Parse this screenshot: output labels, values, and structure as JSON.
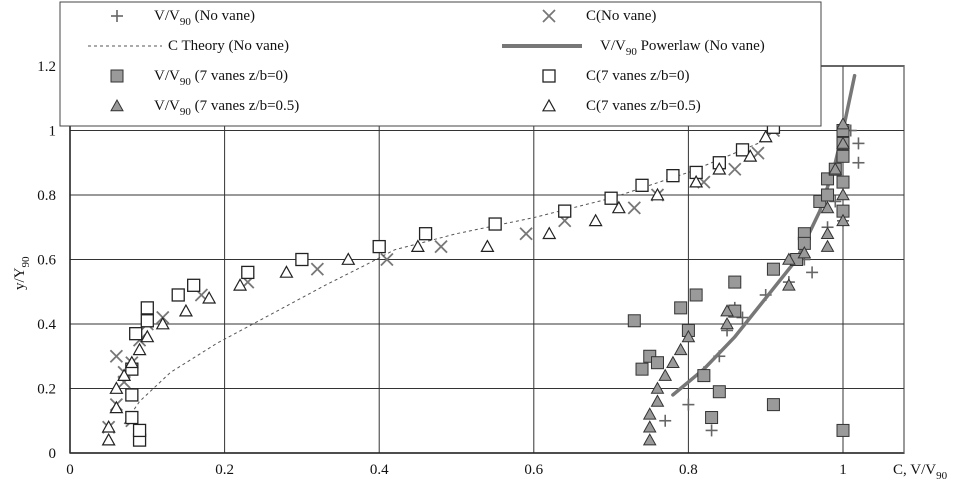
{
  "chart_data": {
    "type": "scatter",
    "x_axis": {
      "label": "C, V/V",
      "label_sub": "90",
      "range": [
        0,
        1
      ],
      "ticks": [
        0,
        0.2,
        0.4,
        0.6,
        0.8,
        1
      ],
      "tick_labels": [
        "0",
        "0.2",
        "0.4",
        "0.6",
        "0.8",
        "1"
      ]
    },
    "y_axis": {
      "label": "y/Y",
      "label_sub": "90",
      "range": [
        0,
        1.2
      ],
      "ticks": [
        0,
        0.2,
        0.4,
        0.6,
        0.8,
        1,
        1.2
      ],
      "tick_labels": [
        "0",
        "0.2",
        "0.4",
        "0.6",
        "0.8",
        "1",
        "1.2"
      ]
    },
    "grid": true,
    "legend_position": "top",
    "series": [
      {
        "name": "V/V",
        "sub": "90",
        "suffix": " (No vane)",
        "marker": "plus",
        "color": "#666666",
        "x": [
          0.83,
          0.8,
          0.77,
          0.82,
          0.85,
          0.87,
          0.84,
          0.86,
          0.9,
          0.93,
          0.96,
          0.98,
          1.0,
          0.99,
          1.02,
          1.02,
          1.01,
          0.95
        ],
        "y": [
          0.07,
          0.15,
          0.1,
          0.25,
          0.38,
          0.42,
          0.3,
          0.45,
          0.49,
          0.53,
          0.56,
          0.7,
          0.72,
          0.78,
          0.9,
          0.96,
          1.0,
          0.6
        ]
      },
      {
        "name": "C(No vane)",
        "marker": "x",
        "color": "#777777",
        "x": [
          0.05,
          0.06,
          0.07,
          0.08,
          0.09,
          0.1,
          0.12,
          0.17,
          0.23,
          0.32,
          0.41,
          0.48,
          0.59,
          0.64,
          0.73,
          0.76,
          0.82,
          0.86,
          0.89,
          0.91,
          0.06,
          0.07,
          0.08
        ],
        "y": [
          0.08,
          0.15,
          0.22,
          0.28,
          0.35,
          0.4,
          0.42,
          0.49,
          0.53,
          0.57,
          0.6,
          0.64,
          0.68,
          0.72,
          0.76,
          0.8,
          0.84,
          0.88,
          0.93,
          1.0,
          0.3,
          0.25,
          0.1
        ]
      },
      {
        "name": "C Theory (No vane)",
        "marker": "dash-line",
        "color": "#555555",
        "x": [
          0.07,
          0.09,
          0.13,
          0.19,
          0.26,
          0.33,
          0.38,
          0.42,
          0.5,
          0.6,
          0.7,
          0.8,
          0.9
        ],
        "y": [
          0.09,
          0.16,
          0.25,
          0.34,
          0.43,
          0.52,
          0.58,
          0.63,
          0.68,
          0.73,
          0.79,
          0.87,
          0.97
        ]
      },
      {
        "name": "V/V",
        "sub": "90",
        "suffix": " Powerlaw (No vane)",
        "marker": "thick-line",
        "color": "#777777",
        "x": [
          0.78,
          0.82,
          0.86,
          0.9,
          0.94,
          0.97,
          0.99,
          1.0,
          1.015
        ],
        "y": [
          0.18,
          0.26,
          0.36,
          0.48,
          0.6,
          0.75,
          0.9,
          1.0,
          1.17
        ]
      },
      {
        "name": "V/V",
        "sub": "90",
        "suffix": " (7 vanes z/b=0)",
        "marker": "filled-square",
        "color": "#9a9a9a",
        "x": [
          0.73,
          0.74,
          0.75,
          0.76,
          0.79,
          0.8,
          0.81,
          0.82,
          0.83,
          0.84,
          0.86,
          0.86,
          0.91,
          0.91,
          0.94,
          0.95,
          0.95,
          0.97,
          0.98,
          0.98,
          0.99,
          1.0,
          1.0,
          1.0,
          1.0,
          1.0,
          1.0
        ],
        "y": [
          0.41,
          0.26,
          0.3,
          0.28,
          0.45,
          0.38,
          0.49,
          0.24,
          0.11,
          0.19,
          0.53,
          0.44,
          0.57,
          0.15,
          0.6,
          0.68,
          0.65,
          0.78,
          0.8,
          0.85,
          0.88,
          0.92,
          0.96,
          1.0,
          0.75,
          0.84,
          0.07
        ]
      },
      {
        "name": "C(7 vanes z/b=0)",
        "marker": "open-square",
        "color": "#222222",
        "x": [
          0.09,
          0.09,
          0.08,
          0.08,
          0.08,
          0.085,
          0.1,
          0.1,
          0.14,
          0.16,
          0.23,
          0.3,
          0.4,
          0.46,
          0.55,
          0.64,
          0.7,
          0.74,
          0.78,
          0.81,
          0.84,
          0.87,
          0.91
        ],
        "y": [
          0.04,
          0.07,
          0.11,
          0.18,
          0.26,
          0.37,
          0.41,
          0.45,
          0.49,
          0.52,
          0.56,
          0.6,
          0.64,
          0.68,
          0.71,
          0.75,
          0.79,
          0.83,
          0.86,
          0.87,
          0.9,
          0.94,
          1.01
        ]
      },
      {
        "name": "V/V",
        "sub": "90",
        "suffix": " (7 vanes z/b=0.5)",
        "marker": "filled-triangle",
        "color": "#9a9a9a",
        "x": [
          0.75,
          0.75,
          0.75,
          0.76,
          0.76,
          0.77,
          0.78,
          0.79,
          0.8,
          0.85,
          0.85,
          0.93,
          0.93,
          0.95,
          0.98,
          0.98,
          0.98,
          0.99,
          1.0,
          1.0,
          1.0,
          1.0
        ],
        "y": [
          0.04,
          0.08,
          0.12,
          0.16,
          0.2,
          0.24,
          0.28,
          0.32,
          0.36,
          0.4,
          0.44,
          0.52,
          0.6,
          0.62,
          0.64,
          0.68,
          0.76,
          0.88,
          0.72,
          0.8,
          0.96,
          1.02
        ]
      },
      {
        "name": "C(7 vanes z/b=0.5)",
        "marker": "open-triangle",
        "color": "#222222",
        "x": [
          0.05,
          0.05,
          0.06,
          0.06,
          0.07,
          0.08,
          0.09,
          0.1,
          0.12,
          0.15,
          0.18,
          0.22,
          0.28,
          0.36,
          0.45,
          0.54,
          0.62,
          0.68,
          0.71,
          0.76,
          0.81,
          0.84,
          0.88,
          0.9
        ],
        "y": [
          0.04,
          0.08,
          0.14,
          0.2,
          0.24,
          0.28,
          0.32,
          0.36,
          0.4,
          0.44,
          0.48,
          0.52,
          0.56,
          0.6,
          0.64,
          0.64,
          0.68,
          0.72,
          0.76,
          0.8,
          0.84,
          0.88,
          0.92,
          0.98
        ]
      }
    ]
  }
}
